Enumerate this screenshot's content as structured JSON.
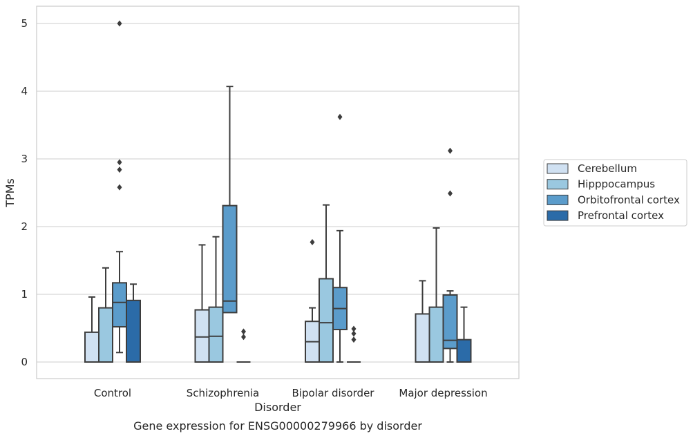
{
  "chart_data": {
    "type": "boxplot",
    "caption": "Gene expression for ENSG00000279966 by disorder",
    "xlabel": "Disorder",
    "ylabel": "TPMs",
    "ylim": [
      -0.25,
      5.25
    ],
    "yticks": [
      0,
      1,
      2,
      3,
      4,
      5
    ],
    "grid": "horizontal",
    "legend_position": "right",
    "categories": [
      "Control",
      "Schizophrenia",
      "Bipolar disorder",
      "Major depression"
    ],
    "series": [
      {
        "name": "Cerebellum",
        "color": "#d0e1f2",
        "boxes": [
          {
            "lo": 0,
            "q1": 0,
            "med": 0,
            "q3": 0.44,
            "hi": 0.96,
            "outliers": []
          },
          {
            "lo": 0,
            "q1": 0,
            "med": 0.37,
            "q3": 0.77,
            "hi": 1.73,
            "outliers": []
          },
          {
            "lo": 0,
            "q1": 0,
            "med": 0.3,
            "q3": 0.6,
            "hi": 0.8,
            "outliers": [
              1.77
            ]
          },
          {
            "lo": 0,
            "q1": 0,
            "med": 0,
            "q3": 0.71,
            "hi": 1.2,
            "outliers": []
          }
        ]
      },
      {
        "name": "Hipppocampus",
        "color": "#9ac8e0",
        "boxes": [
          {
            "lo": 0,
            "q1": 0,
            "med": 0,
            "q3": 0.8,
            "hi": 1.39,
            "outliers": []
          },
          {
            "lo": 0,
            "q1": 0,
            "med": 0.38,
            "q3": 0.81,
            "hi": 1.85,
            "outliers": []
          },
          {
            "lo": 0,
            "q1": 0,
            "med": 0.58,
            "q3": 1.23,
            "hi": 2.32,
            "outliers": []
          },
          {
            "lo": 0,
            "q1": 0,
            "med": 0,
            "q3": 0.81,
            "hi": 1.98,
            "outliers": []
          }
        ]
      },
      {
        "name": "Orbitofrontal cortex",
        "color": "#5b9ccb",
        "boxes": [
          {
            "lo": 0.14,
            "q1": 0.52,
            "med": 0.88,
            "q3": 1.17,
            "hi": 1.63,
            "outliers": [
              2.58,
              2.84,
              2.95,
              5.0
            ]
          },
          {
            "lo": 0.73,
            "q1": 0.73,
            "med": 0.9,
            "q3": 2.31,
            "hi": 4.07,
            "outliers": []
          },
          {
            "lo": 0,
            "q1": 0.48,
            "med": 0.79,
            "q3": 1.1,
            "hi": 1.94,
            "outliers": [
              3.62
            ]
          },
          {
            "lo": 0,
            "q1": 0.2,
            "med": 0.32,
            "q3": 0.99,
            "hi": 1.05,
            "outliers": [
              2.49,
              3.12
            ]
          }
        ]
      },
      {
        "name": "Prefrontal cortex",
        "color": "#2b6ba8",
        "boxes": [
          {
            "lo": 0,
            "q1": 0,
            "med": 0,
            "q3": 0.91,
            "hi": 1.15,
            "outliers": []
          },
          {
            "lo": 0,
            "q1": 0,
            "med": 0,
            "q3": 0,
            "hi": 0,
            "outliers": [
              0.37,
              0.45
            ]
          },
          {
            "lo": 0,
            "q1": 0,
            "med": 0,
            "q3": 0,
            "hi": 0,
            "outliers": [
              0.33,
              0.42,
              0.49
            ]
          },
          {
            "lo": 0,
            "q1": 0,
            "med": 0,
            "q3": 0.33,
            "hi": 0.81,
            "outliers": []
          }
        ]
      }
    ]
  }
}
